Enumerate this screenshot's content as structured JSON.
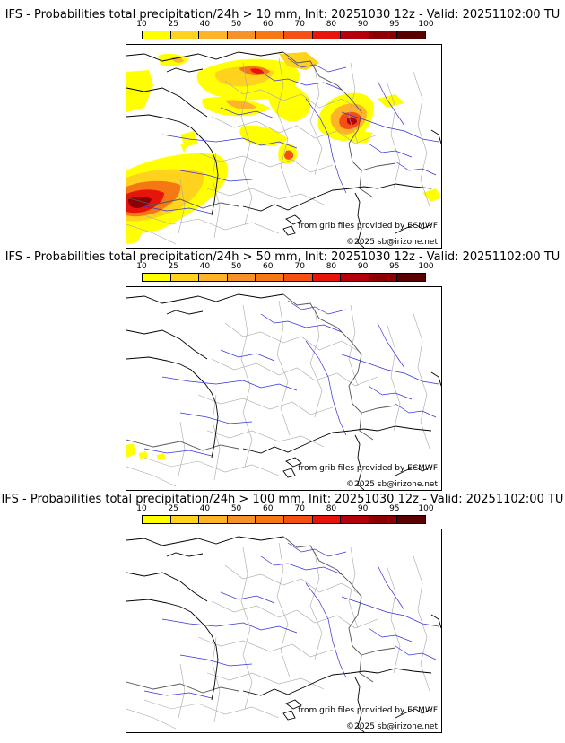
{
  "colorbar": {
    "ticks": [
      "10",
      "25",
      "40",
      "50",
      "60",
      "70",
      "80",
      "90",
      "95",
      "100"
    ],
    "colors": [
      "#ffff00",
      "#ffd21e",
      "#ffb428",
      "#f59128",
      "#f57814",
      "#f55014",
      "#e6140a",
      "#b4000a",
      "#8c0005",
      "#5a0000"
    ]
  },
  "credits": {
    "source": "from grib files provided by ECMWF",
    "copyright": "©2025 sb@irizone.net"
  },
  "panels": [
    {
      "title": "IFS - Probabilities total precipitation/24h > 10 mm, Init: 20251030 12z - Valid: 20251102:00 TU"
    },
    {
      "title": "IFS - Probabilities total precipitation/24h > 50 mm, Init: 20251030 12z - Valid: 20251102:00 TU"
    },
    {
      "title": "IFS - Probabilities total precipitation/24h > 100 mm, Init: 20251030 12z - Valid: 20251102:00 TU"
    }
  ],
  "map": {
    "coastline_color": "#000000",
    "river_color": "#3333dd",
    "border_color": "#999999"
  }
}
